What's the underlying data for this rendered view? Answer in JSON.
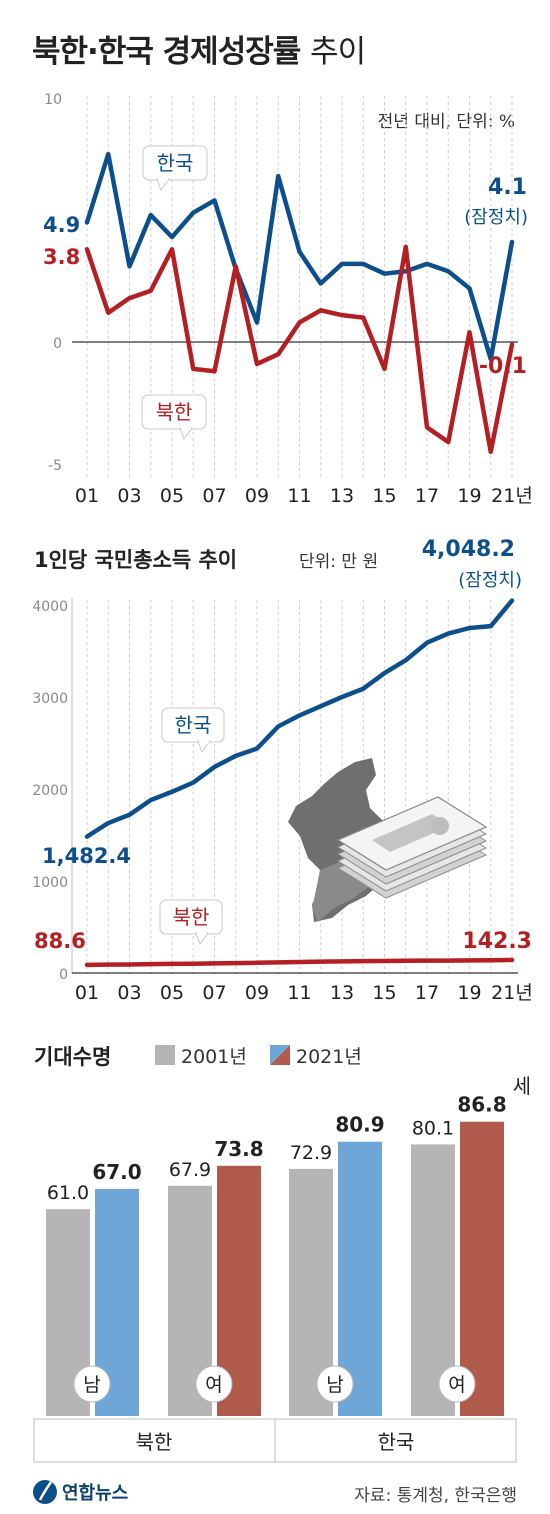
{
  "title": {
    "main": "북한·한국 경제성장률",
    "light": "추이"
  },
  "colors": {
    "korea": "#0d4f8c",
    "nk": "#b41f24",
    "gray": "#b5b5b5",
    "blue": "#6ea6d8",
    "brown": "#b05a4b",
    "grid": "#9a9a9a"
  },
  "chart_data": [
    {
      "type": "line",
      "title": "",
      "unit_note": "전년 대비, 단위: %",
      "x": [
        "01",
        "02",
        "03",
        "04",
        "05",
        "06",
        "07",
        "08",
        "09",
        "10",
        "11",
        "12",
        "13",
        "14",
        "15",
        "16",
        "17",
        "18",
        "19",
        "20",
        "21년"
      ],
      "x_tick_labels": [
        "01",
        "03",
        "05",
        "07",
        "09",
        "11",
        "13",
        "15",
        "17",
        "19",
        "21년"
      ],
      "y_ticks": [
        "10",
        "0",
        "-5"
      ],
      "ylim": [
        -5,
        10
      ],
      "series": [
        {
          "name": "한국",
          "color": "#0d4f8c",
          "values": [
            4.9,
            7.7,
            3.1,
            5.2,
            4.3,
            5.3,
            5.8,
            3.0,
            0.8,
            6.8,
            3.7,
            2.4,
            3.2,
            3.2,
            2.8,
            2.9,
            3.2,
            2.9,
            2.2,
            -0.7,
            4.1
          ]
        },
        {
          "name": "북한",
          "color": "#b41f24",
          "values": [
            3.8,
            1.2,
            1.8,
            2.1,
            3.8,
            -1.1,
            -1.2,
            3.1,
            -0.9,
            -0.5,
            0.8,
            1.3,
            1.1,
            1.0,
            -1.1,
            3.9,
            -3.5,
            -4.1,
            0.4,
            -4.5,
            -0.1
          ]
        }
      ],
      "annotations": {
        "korea_start": "4.9",
        "nk_start": "3.8",
        "korea_end": "4.1",
        "korea_end_note": "(잠정치)",
        "nk_end": "-0.1"
      },
      "grid": true
    },
    {
      "type": "line",
      "title": "1인당 국민총소득 추이",
      "unit_note": "단위: 만 원",
      "x": [
        "01",
        "02",
        "03",
        "04",
        "05",
        "06",
        "07",
        "08",
        "09",
        "10",
        "11",
        "12",
        "13",
        "14",
        "15",
        "16",
        "17",
        "18",
        "19",
        "20",
        "21년"
      ],
      "x_tick_labels": [
        "01",
        "03",
        "05",
        "07",
        "09",
        "11",
        "13",
        "15",
        "17",
        "19",
        "21년"
      ],
      "y_ticks": [
        "4000",
        "3000",
        "2000",
        "1000",
        "0"
      ],
      "ylim": [
        0,
        4000
      ],
      "series": [
        {
          "name": "한국",
          "color": "#0d4f8c",
          "values": [
            1482.4,
            1630,
            1720,
            1880,
            1970,
            2070,
            2240,
            2360,
            2440,
            2680,
            2800,
            2900,
            3000,
            3090,
            3260,
            3400,
            3590,
            3690,
            3750,
            3770,
            4048.2
          ]
        },
        {
          "name": "북한",
          "color": "#b41f24",
          "values": [
            88.6,
            91,
            93,
            96,
            99,
            101,
            104,
            107,
            111,
            115,
            120,
            124,
            127,
            129,
            131,
            133,
            134,
            135,
            137,
            138,
            142.3
          ]
        }
      ],
      "annotations": {
        "korea_start": "1,482.4",
        "korea_end": "4,048.2",
        "korea_end_note": "(잠정치)",
        "nk_start": "88.6",
        "nk_end": "142.3"
      },
      "grid": true
    },
    {
      "type": "bar",
      "title": "기대수명",
      "legend": [
        "2001년",
        "2021년"
      ],
      "legend_placement": "top",
      "unit_suffix": "세",
      "groups": [
        "북한",
        "한국"
      ],
      "categories": [
        "남",
        "여",
        "남",
        "여"
      ],
      "series": [
        {
          "name": "2001년",
          "values": [
            61.0,
            67.9,
            72.9,
            80.1
          ]
        },
        {
          "name": "2021년",
          "values": [
            67.0,
            73.8,
            80.9,
            86.8
          ]
        }
      ],
      "labels_2001": [
        "61.0",
        "67.9",
        "72.9",
        "80.1"
      ],
      "labels_2021": [
        "67.0",
        "73.8",
        "80.9",
        "86.8"
      ]
    }
  ],
  "footer": {
    "logo": "연합뉴스",
    "source": "자료: 통계청, 한국은행"
  }
}
